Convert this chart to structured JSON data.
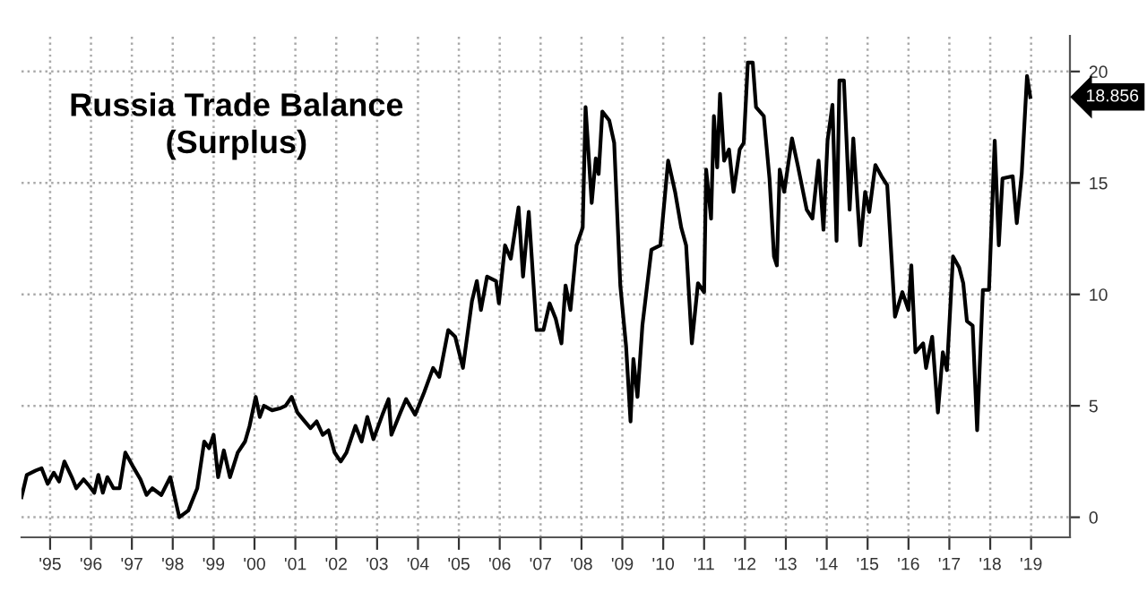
{
  "chart_data": {
    "type": "line",
    "title": "Russia Trade Balance\n(Surplus)",
    "x": [
      1994.3,
      1994.43,
      1994.65,
      1994.79,
      1994.94,
      1995.09,
      1995.22,
      1995.35,
      1995.53,
      1995.64,
      1995.82,
      1995.96,
      1996.08,
      1996.18,
      1996.29,
      1996.4,
      1996.55,
      1996.7,
      1996.84,
      1997.02,
      1997.21,
      1997.36,
      1997.5,
      1997.72,
      1997.94,
      1998.16,
      1998.38,
      1998.6,
      1998.77,
      1998.89,
      1999.0,
      1999.11,
      1999.25,
      1999.4,
      1999.59,
      1999.77,
      1999.88,
      2000.03,
      2000.13,
      2000.23,
      2000.43,
      2000.64,
      2000.76,
      2000.91,
      2001.05,
      2001.23,
      2001.37,
      2001.52,
      2001.67,
      2001.81,
      2001.96,
      2002.11,
      2002.25,
      2002.47,
      2002.62,
      2002.76,
      2002.91,
      2003.13,
      2003.28,
      2003.35,
      2003.57,
      2003.71,
      2003.93,
      2004.15,
      2004.37,
      2004.52,
      2004.74,
      2004.91,
      2005.1,
      2005.32,
      2005.44,
      2005.54,
      2005.69,
      2005.91,
      2005.98,
      2006.13,
      2006.27,
      2006.46,
      2006.57,
      2006.71,
      2006.9,
      2007.07,
      2007.22,
      2007.37,
      2007.51,
      2007.61,
      2007.73,
      2007.88,
      2008.03,
      2008.1,
      2008.25,
      2008.35,
      2008.42,
      2008.51,
      2008.68,
      2008.8,
      2008.95,
      2009.09,
      2009.2,
      2009.27,
      2009.37,
      2009.49,
      2009.71,
      2009.93,
      2010.12,
      2010.29,
      2010.44,
      2010.56,
      2010.7,
      2010.85,
      2011.0,
      2011.05,
      2011.17,
      2011.24,
      2011.32,
      2011.39,
      2011.49,
      2011.61,
      2011.72,
      2011.87,
      2011.97,
      2012.07,
      2012.19,
      2012.27,
      2012.46,
      2012.6,
      2012.71,
      2012.78,
      2012.85,
      2012.96,
      2013.15,
      2013.29,
      2013.51,
      2013.65,
      2013.8,
      2013.92,
      2014.02,
      2014.14,
      2014.24,
      2014.31,
      2014.42,
      2014.56,
      2014.65,
      2014.82,
      2014.94,
      2015.04,
      2015.19,
      2015.34,
      2015.48,
      2015.67,
      2015.85,
      2016.0,
      2016.07,
      2016.17,
      2016.36,
      2016.43,
      2016.58,
      2016.72,
      2016.84,
      2016.94,
      2017.09,
      2017.24,
      2017.34,
      2017.43,
      2017.57,
      2017.68,
      2017.82,
      2017.97,
      2018.11,
      2018.21,
      2018.3,
      2018.55,
      2018.65,
      2018.77,
      2018.9,
      2018.98
    ],
    "series": [
      {
        "color": "#000000",
        "values": [
          0.9,
          1.9,
          2.1,
          2.2,
          1.5,
          2.0,
          1.6,
          2.5,
          1.8,
          1.3,
          1.7,
          1.4,
          1.1,
          1.9,
          1.1,
          1.8,
          1.3,
          1.3,
          2.9,
          2.3,
          1.7,
          1.0,
          1.3,
          1.0,
          1.8,
          0.0,
          0.3,
          1.3,
          3.4,
          3.1,
          3.7,
          1.8,
          3.0,
          1.8,
          2.9,
          3.4,
          4.1,
          5.4,
          4.5,
          5.0,
          4.8,
          4.9,
          5.0,
          5.4,
          4.7,
          4.3,
          4.0,
          4.3,
          3.7,
          3.9,
          2.9,
          2.5,
          2.9,
          4.1,
          3.4,
          4.5,
          3.5,
          4.6,
          5.3,
          3.7,
          4.7,
          5.3,
          4.6,
          5.6,
          6.7,
          6.3,
          8.4,
          8.1,
          6.7,
          9.7,
          10.6,
          9.3,
          10.8,
          10.6,
          9.6,
          12.2,
          11.6,
          13.9,
          10.8,
          13.7,
          8.4,
          8.4,
          9.6,
          8.9,
          7.8,
          10.4,
          9.3,
          12.2,
          13.0,
          18.4,
          14.1,
          16.1,
          15.4,
          18.2,
          17.8,
          16.8,
          10.4,
          7.7,
          4.3,
          7.1,
          5.4,
          8.6,
          12.0,
          12.2,
          16.0,
          14.6,
          13.0,
          12.2,
          7.8,
          10.5,
          10.1,
          15.6,
          13.4,
          18.0,
          15.7,
          19.0,
          16.0,
          16.5,
          14.6,
          16.5,
          16.8,
          20.4,
          20.4,
          18.4,
          18.0,
          15.2,
          11.7,
          11.3,
          15.6,
          14.6,
          17.0,
          15.8,
          13.8,
          13.4,
          16.0,
          12.9,
          16.9,
          18.5,
          12.4,
          19.6,
          19.6,
          13.8,
          17.0,
          12.2,
          14.6,
          13.7,
          15.8,
          15.3,
          14.9,
          9.0,
          10.1,
          9.3,
          11.3,
          7.4,
          7.8,
          6.7,
          8.1,
          4.7,
          7.4,
          6.6,
          11.7,
          11.2,
          10.5,
          8.8,
          8.6,
          3.9,
          10.2,
          10.2,
          16.9,
          12.2,
          15.2,
          15.3,
          13.2,
          15.4,
          19.8,
          18.856
        ]
      }
    ],
    "xlim": [
      1994.3,
      2019.95
    ],
    "xticks": [
      {
        "value": 1995,
        "label": "'95"
      },
      {
        "value": 1996,
        "label": "'96"
      },
      {
        "value": 1997,
        "label": "'97"
      },
      {
        "value": 1998,
        "label": "'98"
      },
      {
        "value": 1999,
        "label": "'99"
      },
      {
        "value": 2000,
        "label": "'00"
      },
      {
        "value": 2001,
        "label": "'01"
      },
      {
        "value": 2002,
        "label": "'02"
      },
      {
        "value": 2003,
        "label": "'03"
      },
      {
        "value": 2004,
        "label": "'04"
      },
      {
        "value": 2005,
        "label": "'05"
      },
      {
        "value": 2006,
        "label": "'06"
      },
      {
        "value": 2007,
        "label": "'07"
      },
      {
        "value": 2008,
        "label": "'08"
      },
      {
        "value": 2009,
        "label": "'09"
      },
      {
        "value": 2010,
        "label": "'10"
      },
      {
        "value": 2011,
        "label": "'11"
      },
      {
        "value": 2012,
        "label": "'12"
      },
      {
        "value": 2013,
        "label": "'13"
      },
      {
        "value": 2014,
        "label": "'14"
      },
      {
        "value": 2015,
        "label": "'15"
      },
      {
        "value": 2016,
        "label": "'16"
      },
      {
        "value": 2017,
        "label": "'17"
      },
      {
        "value": 2018,
        "label": "'18"
      },
      {
        "value": 2019,
        "label": "'19"
      }
    ],
    "ylim": [
      -0.9,
      21.6
    ],
    "yticks": [
      0,
      5,
      10,
      15,
      20
    ],
    "grid": true,
    "line_style": "solid",
    "annotations": [
      "18.856"
    ]
  }
}
